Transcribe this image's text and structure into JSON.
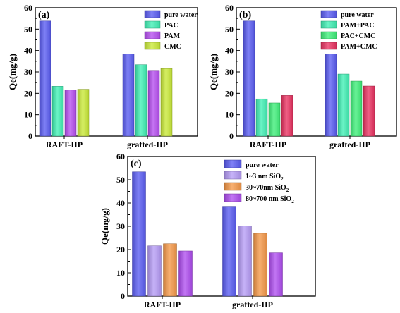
{
  "chart_data": [
    {
      "type": "bar",
      "panel_label": "(a)",
      "ylabel": "Qe(mg/g)",
      "ylim": [
        0,
        60
      ],
      "yticks": [
        "0",
        "10",
        "20",
        "30",
        "40",
        "50",
        "60"
      ],
      "categories": [
        "RAFT-IIP",
        "grafted-IIP"
      ],
      "legend_position": "top-right",
      "series": [
        {
          "name": "pure water",
          "values": [
            53.8,
            38.4
          ]
        },
        {
          "name": "PAC",
          "values": [
            23.3,
            33.4
          ]
        },
        {
          "name": "PAM",
          "values": [
            21.5,
            30.4
          ]
        },
        {
          "name": "CMC",
          "values": [
            21.9,
            31.6
          ]
        }
      ]
    },
    {
      "type": "bar",
      "panel_label": "(b)",
      "ylabel": "Qe(mg/g)",
      "ylim": [
        0,
        60
      ],
      "yticks": [
        "0",
        "10",
        "20",
        "30",
        "40",
        "50",
        "60"
      ],
      "categories": [
        "RAFT-IIP",
        "grafted-IIP"
      ],
      "legend_position": "top-right",
      "series": [
        {
          "name": "pure water",
          "values": [
            53.8,
            38.4
          ]
        },
        {
          "name": "PAM+PAC",
          "values": [
            17.4,
            29.0
          ]
        },
        {
          "name": "PAC+CMC",
          "values": [
            15.5,
            25.7
          ]
        },
        {
          "name": "PAM+CMC",
          "values": [
            19.0,
            23.4
          ]
        }
      ]
    },
    {
      "type": "bar",
      "panel_label": "(c)",
      "ylabel": "Qe(mg/g)",
      "ylim": [
        0,
        60
      ],
      "yticks": [
        "0",
        "10",
        "20",
        "30",
        "40",
        "50",
        "60"
      ],
      "categories": [
        "RAFT-IIP",
        "grafted-IIP"
      ],
      "legend_position": "top-right",
      "series": [
        {
          "name": "pure water",
          "values": [
            53.4,
            38.6
          ]
        },
        {
          "name": "1~3 nm SiO",
          "subscript": "2",
          "values": [
            21.6,
            30.1
          ]
        },
        {
          "name": "30~70nm SiO",
          "subscript": "2",
          "values": [
            22.5,
            27.0
          ]
        },
        {
          "name": "80~700 nm SiO",
          "subscript": "2",
          "values": [
            19.4,
            18.6
          ]
        }
      ]
    }
  ],
  "colors": {
    "a": [
      "#5a5cf2",
      "#40f0b4",
      "#b64ef0",
      "#caea38"
    ],
    "b": [
      "#5a5cf2",
      "#40f0b4",
      "#3ff07a",
      "#ea3362"
    ],
    "c": [
      "#5a5cf2",
      "#b69cf6",
      "#f59848",
      "#b04ef0"
    ]
  }
}
